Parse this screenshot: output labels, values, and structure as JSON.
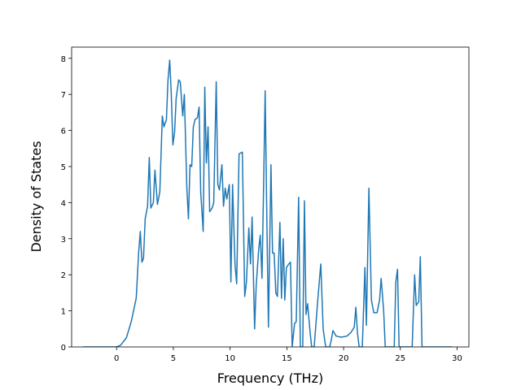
{
  "chart_data": {
    "type": "line",
    "x_label": "Frequency (THz)",
    "y_label": "Density of States",
    "xlim": [
      -3.96,
      31.04
    ],
    "ylim": [
      0,
      8.31
    ],
    "xticks": [
      0,
      5,
      10,
      15,
      20,
      25,
      30
    ],
    "yticks": [
      0,
      1,
      2,
      3,
      4,
      5,
      6,
      7,
      8
    ],
    "series": [
      {
        "color": "#1f77b4",
        "x": [
          -2.95,
          0,
          0.36,
          0.86,
          1.29,
          1.73,
          1.94,
          2.09,
          2.23,
          2.37,
          2.52,
          2.73,
          2.88,
          3.02,
          3.24,
          3.38,
          3.6,
          3.81,
          4.03,
          4.17,
          4.39,
          4.53,
          4.68,
          4.82,
          4.96,
          5.11,
          5.25,
          5.47,
          5.61,
          5.83,
          5.97,
          6.19,
          6.33,
          6.47,
          6.62,
          6.76,
          6.91,
          7.12,
          7.27,
          7.41,
          7.63,
          7.77,
          7.91,
          8.06,
          8.2,
          8.42,
          8.56,
          8.78,
          8.92,
          9.06,
          9.28,
          9.42,
          9.57,
          9.71,
          9.93,
          10.07,
          10.22,
          10.43,
          10.58,
          10.79,
          11.08,
          11.29,
          11.44,
          11.65,
          11.8,
          11.94,
          12.16,
          12.3,
          12.52,
          12.66,
          12.81,
          12.95,
          13.09,
          13.24,
          13.38,
          13.6,
          13.74,
          13.88,
          14.03,
          14.17,
          14.39,
          14.53,
          14.68,
          14.82,
          14.96,
          15.18,
          15.32,
          15.47,
          15.68,
          15.83,
          16.04,
          16.19,
          16.4,
          16.55,
          16.69,
          16.83,
          17.05,
          17.19,
          17.41,
          17.7,
          17.99,
          18.2,
          18.42,
          18.78,
          18.92,
          19.06,
          19.35,
          19.78,
          20.29,
          20.65,
          20.94,
          21.08,
          21.22,
          21.37,
          21.65,
          21.88,
          22.01,
          22.23,
          22.45,
          22.66,
          22.95,
          23.17,
          23.31,
          23.53,
          23.67,
          24.46,
          24.6,
          24.75,
          24.89,
          26.04,
          26.26,
          26.4,
          26.62,
          26.76,
          26.91,
          29.57
        ],
        "values": [
          0,
          0,
          0.05,
          0.25,
          0.7,
          1.35,
          2.6,
          3.2,
          2.35,
          2.45,
          3.55,
          3.9,
          5.25,
          3.85,
          4.0,
          4.9,
          3.95,
          4.3,
          6.4,
          6.1,
          6.3,
          7.4,
          7.95,
          7.0,
          5.6,
          5.95,
          6.9,
          7.4,
          7.35,
          6.4,
          7.0,
          4.4,
          3.55,
          5.05,
          5.0,
          6.1,
          6.3,
          6.35,
          6.65,
          4.3,
          3.2,
          7.2,
          5.1,
          6.1,
          3.75,
          3.85,
          4.0,
          7.35,
          4.5,
          4.35,
          5.05,
          3.9,
          4.4,
          4.1,
          4.5,
          1.8,
          4.5,
          2.3,
          1.75,
          5.35,
          5.4,
          1.4,
          1.8,
          3.3,
          2.3,
          3.6,
          0.5,
          1.7,
          2.7,
          3.1,
          1.9,
          4.4,
          7.1,
          3.5,
          0.55,
          5.05,
          2.6,
          2.6,
          1.5,
          1.4,
          3.45,
          1.35,
          3.0,
          1.3,
          2.2,
          2.3,
          2.35,
          0,
          0.65,
          0.7,
          4.15,
          0,
          0,
          4.05,
          0.9,
          1.2,
          0.4,
          0,
          0,
          1.2,
          2.3,
          0.5,
          0,
          0,
          0.2,
          0.45,
          0.3,
          0.27,
          0.3,
          0.4,
          0.55,
          1.1,
          0.4,
          0,
          0,
          2.2,
          0.6,
          4.4,
          1.3,
          0.95,
          0.95,
          1.3,
          1.9,
          1.0,
          0,
          0,
          1.8,
          2.15,
          0,
          0,
          2.0,
          1.15,
          1.25,
          2.5,
          0,
          0
        ]
      }
    ]
  }
}
